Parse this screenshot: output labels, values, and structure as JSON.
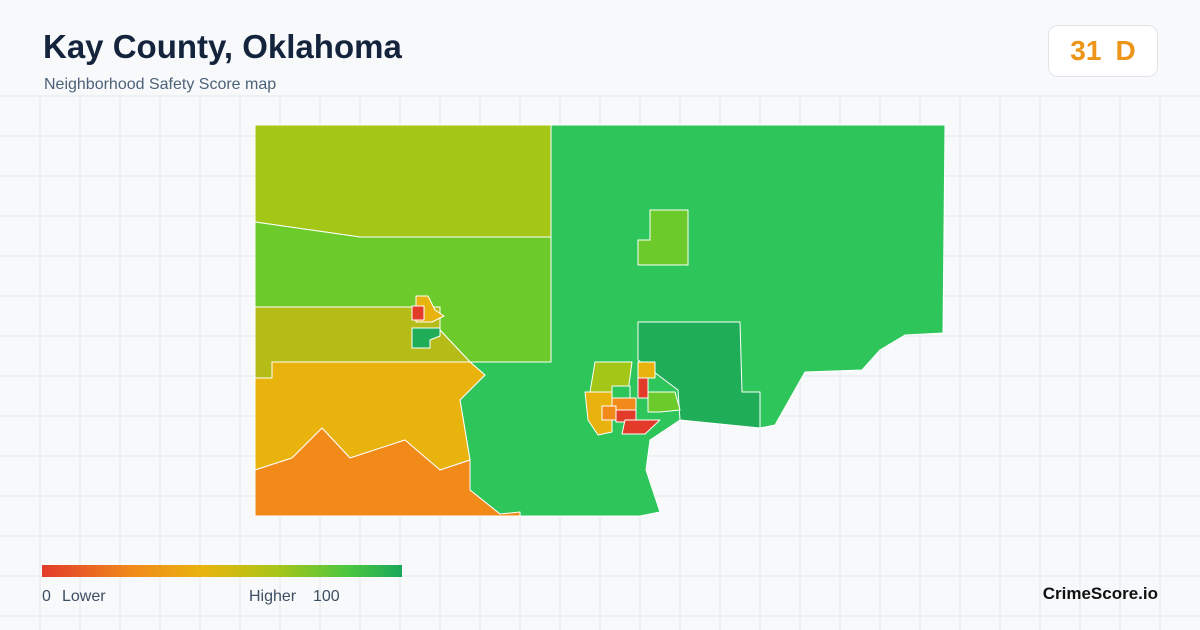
{
  "header": {
    "title": "Kay County, Oklahoma",
    "subtitle": "Neighborhood Safety Score map"
  },
  "score": {
    "value": 31,
    "grade": "D"
  },
  "legend": {
    "min": 0,
    "min_label": "Lower",
    "max_label": "Higher",
    "max": 100
  },
  "brand": "CrimeScore.io"
}
